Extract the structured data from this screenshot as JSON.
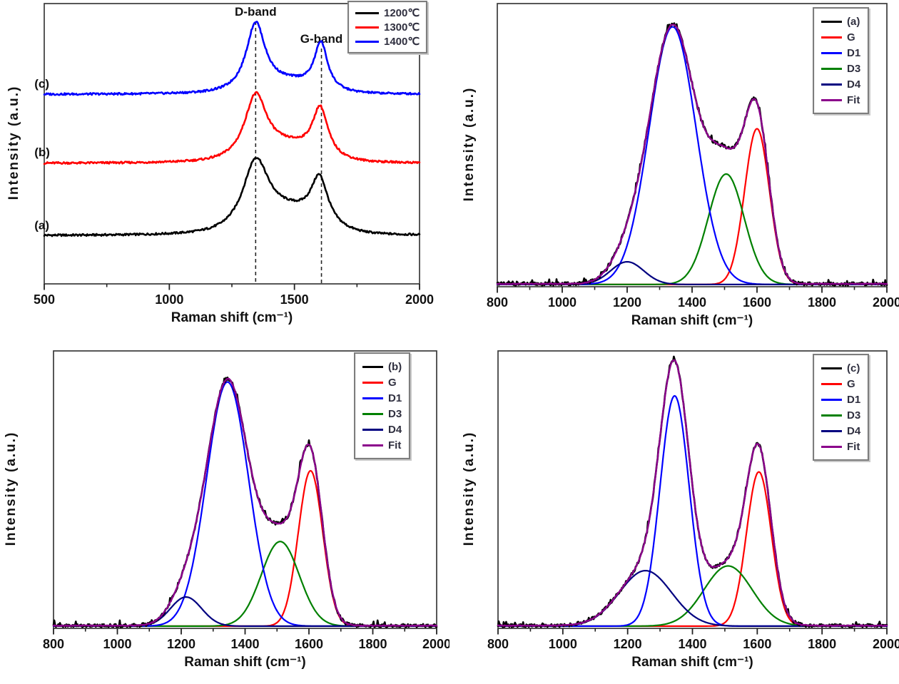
{
  "figure": {
    "background": "#ffffff",
    "description_labels": {
      "d_band": "D-band",
      "g_band": "G-band"
    }
  },
  "chart_data": [
    {
      "id": "overview",
      "type": "line",
      "xlabel": "Raman shift (cm⁻¹)",
      "ylabel": "Intensity (a.u.)",
      "xlim": [
        500,
        2000
      ],
      "x_major_ticks": [
        500,
        1000,
        1500,
        2000
      ],
      "x_minor_ticks": [
        750,
        1250,
        1750
      ],
      "grid": false,
      "legend_position": "top-right",
      "legend": [
        {
          "label": "1200℃",
          "color": "#000000"
        },
        {
          "label": "1300℃",
          "color": "#ff0000"
        },
        {
          "label": "1400℃",
          "color": "#0000ff"
        }
      ],
      "annotations": [
        {
          "type": "vline",
          "x": 1345,
          "style": "dashed",
          "label": "D-band"
        },
        {
          "type": "vline",
          "x": 1608,
          "style": "dashed",
          "label": "G-band"
        }
      ],
      "curve_labels": [
        {
          "text": "(a)",
          "x": 535,
          "y": 0.195
        },
        {
          "text": "(b)",
          "x": 535,
          "y": 0.455
        },
        {
          "text": "(c)",
          "x": 535,
          "y": 0.7
        }
      ],
      "series": [
        {
          "name": "1200℃",
          "sample": "(a)",
          "color": "#000000",
          "baseline": 0.172,
          "noise": 0.0035,
          "seed": 1,
          "peaks": [
            {
              "center": 1345,
              "fwhm": 125,
              "amp": 0.238,
              "shape": "lorentzian"
            },
            {
              "center": 1600,
              "fwhm": 82,
              "amp": 0.163,
              "shape": "lorentzian"
            },
            {
              "center": 1480,
              "fwhm": 280,
              "amp": 0.07,
              "shape": "gaussian"
            }
          ]
        },
        {
          "name": "1300℃",
          "sample": "(b)",
          "color": "#ff0000",
          "baseline": 0.43,
          "noise": 0.0035,
          "seed": 2,
          "peaks": [
            {
              "center": 1345,
              "fwhm": 108,
              "amp": 0.224,
              "shape": "lorentzian"
            },
            {
              "center": 1603,
              "fwhm": 74,
              "amp": 0.17,
              "shape": "lorentzian"
            },
            {
              "center": 1480,
              "fwhm": 260,
              "amp": 0.05,
              "shape": "gaussian"
            }
          ]
        },
        {
          "name": "1400℃",
          "sample": "(c)",
          "color": "#0000ff",
          "baseline": 0.676,
          "noise": 0.0035,
          "seed": 3,
          "peaks": [
            {
              "center": 1345,
              "fwhm": 92,
              "amp": 0.243,
              "shape": "lorentzian"
            },
            {
              "center": 1606,
              "fwhm": 64,
              "amp": 0.167,
              "shape": "lorentzian"
            },
            {
              "center": 1480,
              "fwhm": 240,
              "amp": 0.034,
              "shape": "gaussian"
            }
          ]
        }
      ]
    },
    {
      "id": "deconvolution-a",
      "type": "line",
      "xlabel": "Raman shift (cm⁻¹)",
      "ylabel": "Intensity (a.u.)",
      "xlim": [
        800,
        2000
      ],
      "x_major_ticks": [
        800,
        1000,
        1200,
        1400,
        1600,
        1800,
        2000
      ],
      "x_minor_ticks": [
        900,
        1100,
        1300,
        1500,
        1700,
        1900
      ],
      "grid": false,
      "legend_position": "top-right",
      "legend": [
        {
          "label": "(a)",
          "color": "#000000"
        },
        {
          "label": "G",
          "color": "#ff0000"
        },
        {
          "label": "D1",
          "color": "#0000ff"
        },
        {
          "label": "D3",
          "color": "#008000"
        },
        {
          "label": "D4",
          "color": "#000080"
        },
        {
          "label": "Fit",
          "color": "#8B008B"
        }
      ],
      "series": [
        {
          "name": "G",
          "color": "#ff0000",
          "baseline": 0.008,
          "peaks": [
            {
              "center": 1600,
              "fwhm": 90,
              "amp": 0.55,
              "shape": "gaussian"
            }
          ]
        },
        {
          "name": "D3",
          "color": "#008000",
          "baseline": 0.008,
          "peaks": [
            {
              "center": 1505,
              "fwhm": 130,
              "amp": 0.39,
              "shape": "gaussian"
            }
          ]
        },
        {
          "name": "D1",
          "color": "#0000ff",
          "baseline": 0.008,
          "peaks": [
            {
              "center": 1340,
              "fwhm": 170,
              "amp": 0.91,
              "shape": "gaussian"
            }
          ]
        },
        {
          "name": "D4",
          "color": "#000080",
          "baseline": 0.008,
          "peaks": [
            {
              "center": 1200,
              "fwhm": 120,
              "amp": 0.08,
              "shape": "gaussian"
            }
          ]
        },
        {
          "name": "(a)",
          "role": "data",
          "color": "#000000",
          "baseline": 0.01,
          "noise": 0.006,
          "spikes": true,
          "seed": 11,
          "sum_of": [
            "G",
            "D3",
            "D1",
            "D4"
          ]
        },
        {
          "name": "Fit",
          "role": "fit",
          "color": "#8B008B",
          "baseline": 0.01,
          "noise": 0.0015,
          "seed": 12,
          "sum_of": [
            "G",
            "D3",
            "D1",
            "D4"
          ]
        }
      ]
    },
    {
      "id": "deconvolution-b",
      "type": "line",
      "xlabel": "Raman shift (cm⁻¹)",
      "ylabel": "Intensity (a.u.)",
      "xlim": [
        800,
        2000
      ],
      "x_major_ticks": [
        800,
        1000,
        1200,
        1400,
        1600,
        1800,
        2000
      ],
      "x_minor_ticks": [
        900,
        1100,
        1300,
        1500,
        1700,
        1900
      ],
      "grid": false,
      "legend_position": "top-right",
      "legend": [
        {
          "label": "(b)",
          "color": "#000000"
        },
        {
          "label": "G",
          "color": "#ff0000"
        },
        {
          "label": "D1",
          "color": "#0000ff"
        },
        {
          "label": "D3",
          "color": "#008000"
        },
        {
          "label": "D4",
          "color": "#000080"
        },
        {
          "label": "Fit",
          "color": "#8B008B"
        }
      ],
      "series": [
        {
          "name": "G",
          "color": "#ff0000",
          "baseline": 0.008,
          "peaks": [
            {
              "center": 1605,
              "fwhm": 90,
              "amp": 0.56,
              "shape": "gaussian"
            }
          ]
        },
        {
          "name": "D3",
          "color": "#008000",
          "baseline": 0.008,
          "peaks": [
            {
              "center": 1510,
              "fwhm": 140,
              "amp": 0.305,
              "shape": "gaussian"
            }
          ]
        },
        {
          "name": "D1",
          "color": "#0000ff",
          "baseline": 0.008,
          "peaks": [
            {
              "center": 1345,
              "fwhm": 155,
              "amp": 0.88,
              "shape": "gaussian"
            }
          ]
        },
        {
          "name": "D4",
          "color": "#000080",
          "baseline": 0.008,
          "peaks": [
            {
              "center": 1215,
              "fwhm": 115,
              "amp": 0.105,
              "shape": "gaussian"
            }
          ]
        },
        {
          "name": "(b)",
          "role": "data",
          "color": "#000000",
          "baseline": 0.01,
          "noise": 0.006,
          "spikes": true,
          "seed": 21,
          "sum_of": [
            "G",
            "D3",
            "D1",
            "D4"
          ]
        },
        {
          "name": "Fit",
          "role": "fit",
          "color": "#8B008B",
          "baseline": 0.01,
          "noise": 0.0015,
          "seed": 22,
          "sum_of": [
            "G",
            "D3",
            "D1",
            "D4"
          ]
        }
      ]
    },
    {
      "id": "deconvolution-c",
      "type": "line",
      "xlabel": "Raman shift (cm⁻¹)",
      "ylabel": "Intensity (a.u.)",
      "xlim": [
        800,
        2000
      ],
      "x_major_ticks": [
        800,
        1000,
        1200,
        1400,
        1600,
        1800,
        2000
      ],
      "x_minor_ticks": [
        900,
        1100,
        1300,
        1500,
        1700,
        1900
      ],
      "grid": false,
      "legend_position": "top-right",
      "legend": [
        {
          "label": "(c)",
          "color": "#000000"
        },
        {
          "label": "G",
          "color": "#ff0000"
        },
        {
          "label": "D1",
          "color": "#0000ff"
        },
        {
          "label": "D3",
          "color": "#008000"
        },
        {
          "label": "D4",
          "color": "#000080"
        },
        {
          "label": "Fit",
          "color": "#8B008B"
        }
      ],
      "series": [
        {
          "name": "G",
          "color": "#ff0000",
          "baseline": 0.008,
          "peaks": [
            {
              "center": 1605,
              "fwhm": 90,
              "amp": 0.556,
              "shape": "gaussian"
            }
          ]
        },
        {
          "name": "D3",
          "color": "#008000",
          "baseline": 0.008,
          "peaks": [
            {
              "center": 1510,
              "fwhm": 175,
              "amp": 0.217,
              "shape": "gaussian"
            }
          ]
        },
        {
          "name": "D1",
          "color": "#0000ff",
          "baseline": 0.008,
          "peaks": [
            {
              "center": 1345,
              "fwhm": 106,
              "amp": 0.83,
              "shape": "gaussian"
            }
          ]
        },
        {
          "name": "D4",
          "color": "#000080",
          "baseline": 0.008,
          "peaks": [
            {
              "center": 1255,
              "fwhm": 190,
              "amp": 0.2,
              "shape": "gaussian"
            }
          ]
        },
        {
          "name": "(c)",
          "role": "data",
          "color": "#000000",
          "baseline": 0.01,
          "noise": 0.006,
          "spikes": true,
          "seed": 31,
          "sum_of": [
            "G",
            "D3",
            "D1",
            "D4"
          ]
        },
        {
          "name": "Fit",
          "role": "fit",
          "color": "#8B008B",
          "baseline": 0.01,
          "noise": 0.0015,
          "seed": 32,
          "sum_of": [
            "G",
            "D3",
            "D1",
            "D4"
          ]
        }
      ]
    }
  ]
}
